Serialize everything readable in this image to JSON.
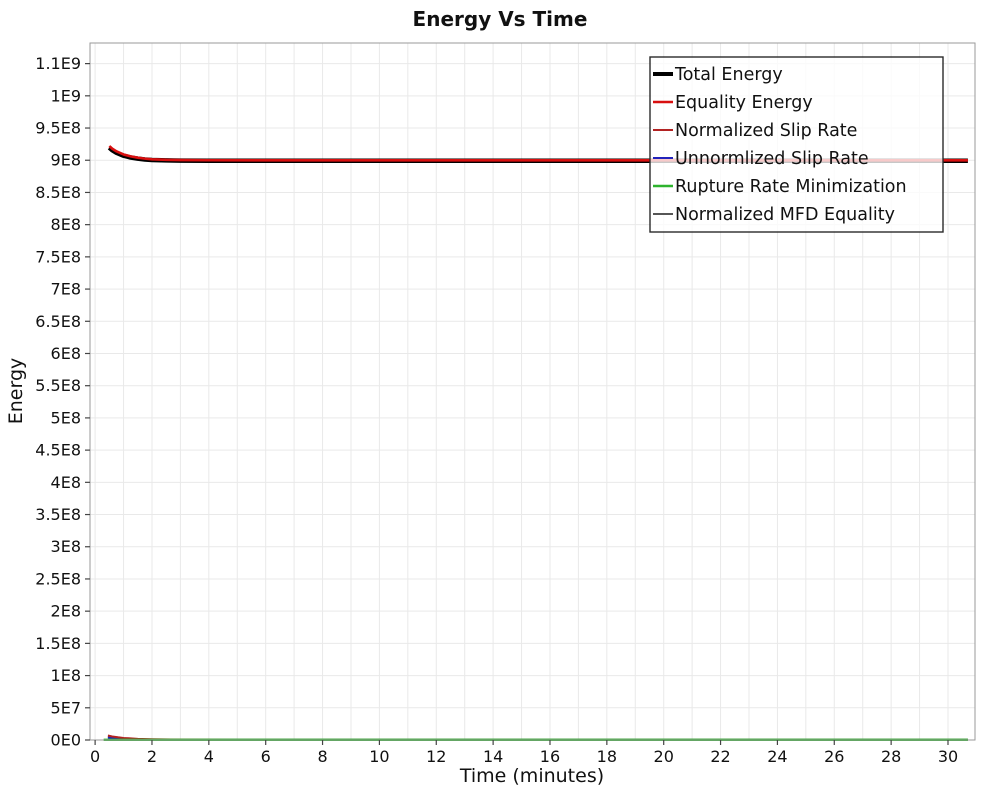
{
  "chart_data": {
    "type": "line",
    "title": "Energy Vs Time",
    "xlabel": "Time (minutes)",
    "ylabel": "Energy",
    "xlim": [
      -0.18,
      30.95
    ],
    "ylim": [
      0,
      1082000000
    ],
    "xticks": [
      0,
      2,
      4,
      6,
      8,
      10,
      12,
      14,
      16,
      18,
      20,
      22,
      24,
      26,
      28,
      30
    ],
    "minor_x_grid_step": 1,
    "ytick_interval": 50000000,
    "ytick_labels": [
      "0E0",
      "5E7",
      "1E8",
      "1.5E8",
      "2E8",
      "2.5E8",
      "3E8",
      "3.5E8",
      "4E8",
      "4.5E8",
      "5E8",
      "5.5E8",
      "6E8",
      "6.5E8",
      "7E8",
      "7.5E8",
      "8E8",
      "8.5E8",
      "9E8",
      "9.5E8",
      "1E9",
      "1.1E9"
    ],
    "grid": true,
    "legend_position": "top-right",
    "series": [
      {
        "name": "Total Energy",
        "color": "#000000",
        "width": 4.5,
        "x": [
          0.5,
          0.6,
          0.75,
          1,
          1.25,
          1.5,
          1.75,
          2,
          2.5,
          3,
          4,
          6,
          8,
          10,
          12,
          14,
          16,
          18,
          20,
          22,
          24,
          26,
          28,
          30,
          30.7
        ],
        "y": [
          919500000,
          915500000,
          911500000,
          907000000,
          904200000,
          902500000,
          901200000,
          900400000,
          899700000,
          899400000,
          899300000,
          899300000,
          899300000,
          899300000,
          899300000,
          899300000,
          899300000,
          899300000,
          899300000,
          899300000,
          899300000,
          899300000,
          899300000,
          899300000,
          899300000
        ]
      },
      {
        "name": "Equality Energy",
        "color": "#d80f0f",
        "width": 2.6,
        "x": [
          0.5,
          0.6,
          0.75,
          1,
          1.25,
          1.5,
          1.75,
          2,
          2.5,
          3,
          4,
          6,
          8,
          10,
          12,
          14,
          16,
          18,
          20,
          22,
          24,
          26,
          28,
          30,
          30.7
        ],
        "y": [
          922000000,
          918000000,
          913800000,
          909000000,
          906000000,
          904000000,
          902500000,
          901500000,
          900600000,
          900200000,
          900000000,
          899900000,
          899900000,
          899900000,
          899900000,
          899900000,
          899900000,
          899900000,
          899900000,
          899900000,
          899900000,
          899900000,
          899900000,
          899900000,
          899900000
        ]
      },
      {
        "name": "Normalized Slip Rate",
        "color": "#b22222",
        "width": 2,
        "x": [
          0.45,
          0.6,
          0.8,
          1,
          1.5,
          2,
          3,
          4,
          5,
          6,
          8,
          30.7
        ],
        "y": [
          7000000,
          5500000,
          4200000,
          3200000,
          1800000,
          1100000,
          500000,
          300000,
          250000,
          200000,
          200000,
          200000
        ]
      },
      {
        "name": "Unnormlized Slip Rate",
        "color": "#2222bb",
        "width": 2,
        "x": [
          0.45,
          0.6,
          0.8,
          1,
          1.5,
          2,
          3,
          30.7
        ],
        "y": [
          3500000,
          2500000,
          1800000,
          1200000,
          600000,
          300000,
          100000,
          100000
        ]
      },
      {
        "name": "Rupture Rate Minimization",
        "color": "#2db32d",
        "width": 2.4,
        "x": [
          0.3,
          30.7
        ],
        "y": [
          350000,
          350000
        ]
      },
      {
        "name": "Normalized MFD Equality",
        "color": "#555555",
        "width": 2,
        "x": [
          0.45,
          0.6,
          0.8,
          1,
          1.5,
          2,
          3,
          30.7
        ],
        "y": [
          5000000,
          3800000,
          2800000,
          2000000,
          1000000,
          500000,
          150000,
          150000
        ]
      }
    ],
    "draw_order": [
      "Normalized MFD Equality",
      "Unnormlized Slip Rate",
      "Normalized Slip Rate",
      "Rupture Rate Minimization",
      "Total Energy",
      "Equality Energy"
    ],
    "colors": {
      "grid": "#e9e9e9",
      "plot_border": "#9a9a9a",
      "tick": "#444444",
      "legend_border": "#2a2a2a",
      "legend_bg_alpha": 0.78,
      "text": "#111111"
    }
  }
}
